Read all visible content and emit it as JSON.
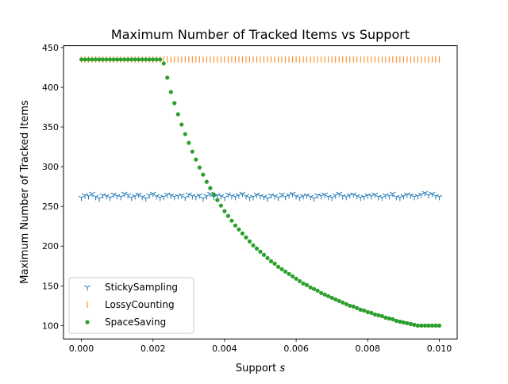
{
  "chart_data": {
    "type": "scatter",
    "title": "Maximum Number of Tracked Items vs Support",
    "xlabel": "Support ",
    "xlabel_var": "s",
    "ylabel": "Maximum Number of Tracked Items",
    "xlim": [
      -0.0005,
      0.0105
    ],
    "ylim": [
      83.2,
      452.3
    ],
    "x_ticks": [
      0.0,
      0.002,
      0.004,
      0.006,
      0.008,
      0.01
    ],
    "x_tick_labels": [
      "0.000",
      "0.002",
      "0.004",
      "0.006",
      "0.008",
      "0.010"
    ],
    "y_ticks": [
      100,
      150,
      200,
      250,
      300,
      350,
      400,
      450
    ],
    "y_tick_labels": [
      "100",
      "150",
      "200",
      "250",
      "300",
      "350",
      "400",
      "450"
    ],
    "grid": false,
    "legend_position": "lower-left",
    "x": [
      0.0,
      0.0001,
      0.0002,
      0.0003,
      0.0004,
      0.0005,
      0.0006,
      0.0007,
      0.0008,
      0.0009,
      0.001,
      0.0011,
      0.0012,
      0.0013,
      0.0014,
      0.0015,
      0.0016,
      0.0017,
      0.0018,
      0.0019,
      0.002,
      0.0021,
      0.0022,
      0.0023,
      0.0024,
      0.0025,
      0.0026,
      0.0027,
      0.0028,
      0.0029,
      0.003,
      0.0031,
      0.0032,
      0.0033,
      0.0034,
      0.0035,
      0.0036,
      0.0037,
      0.0038,
      0.0039,
      0.004,
      0.0041,
      0.0042,
      0.0043,
      0.0044,
      0.0045,
      0.0046,
      0.0047,
      0.0048,
      0.0049,
      0.005,
      0.0051,
      0.0052,
      0.0053,
      0.0054,
      0.0055,
      0.0056,
      0.0057,
      0.0058,
      0.0059,
      0.006,
      0.0061,
      0.0062,
      0.0063,
      0.0064,
      0.0065,
      0.0066,
      0.0067,
      0.0068,
      0.0069,
      0.007,
      0.0071,
      0.0072,
      0.0073,
      0.0074,
      0.0075,
      0.0076,
      0.0077,
      0.0078,
      0.0079,
      0.008,
      0.0081,
      0.0082,
      0.0083,
      0.0084,
      0.0085,
      0.0086,
      0.0087,
      0.0088,
      0.0089,
      0.009,
      0.0091,
      0.0092,
      0.0093,
      0.0094,
      0.0095,
      0.0096,
      0.0097,
      0.0098,
      0.0099,
      0.01
    ],
    "series": [
      {
        "name": "StickySampling",
        "color": "#1f77b4",
        "marker": "tri_down",
        "values": [
          261,
          264,
          263,
          266,
          262,
          260,
          264,
          263,
          261,
          265,
          263,
          262,
          266,
          264,
          261,
          263,
          265,
          262,
          260,
          264,
          266,
          263,
          261,
          262,
          265,
          264,
          262,
          263,
          264,
          261,
          265,
          263,
          262,
          264,
          260,
          263,
          266,
          262,
          264,
          263,
          261,
          265,
          263,
          262,
          264,
          266,
          263,
          261,
          262,
          265,
          263,
          262,
          260,
          264,
          263,
          261,
          265,
          262,
          264,
          266,
          263,
          261,
          263,
          264,
          262,
          260,
          264,
          263,
          265,
          262,
          261,
          264,
          266,
          263,
          262,
          264,
          265,
          263,
          261,
          262,
          264,
          263,
          265,
          262,
          261,
          264,
          263,
          266,
          262,
          261,
          263,
          265,
          264,
          262,
          263,
          265,
          267,
          264,
          266,
          263,
          262
        ]
      },
      {
        "name": "LossyCounting",
        "color": "#ff7f0e",
        "marker": "vline",
        "values": [
          435,
          435,
          435,
          435,
          435,
          435,
          435,
          435,
          435,
          435,
          435,
          435,
          435,
          435,
          435,
          435,
          435,
          435,
          435,
          435,
          435,
          435,
          435,
          435,
          435,
          435,
          435,
          435,
          435,
          435,
          435,
          435,
          435,
          435,
          435,
          435,
          435,
          435,
          435,
          435,
          435,
          435,
          435,
          435,
          435,
          435,
          435,
          435,
          435,
          435,
          435,
          435,
          435,
          435,
          435,
          435,
          435,
          435,
          435,
          435,
          435,
          435,
          435,
          435,
          435,
          435,
          435,
          435,
          435,
          435,
          435,
          435,
          435,
          435,
          435,
          435,
          435,
          435,
          435,
          435,
          435,
          435,
          435,
          435,
          435,
          435,
          435,
          435,
          435,
          435,
          435,
          435,
          435,
          435,
          435,
          435,
          435,
          435,
          435,
          435,
          435
        ]
      },
      {
        "name": "SpaceSaving",
        "color": "#2ca02c",
        "marker": "dot",
        "values": [
          435,
          435,
          435,
          435,
          435,
          435,
          435,
          435,
          435,
          435,
          435,
          435,
          435,
          435,
          435,
          435,
          435,
          435,
          435,
          435,
          435,
          435,
          435,
          430,
          412,
          394,
          380,
          366,
          353,
          341,
          330,
          319,
          309,
          299,
          290,
          281,
          273,
          265,
          258,
          251,
          244,
          238,
          232,
          226,
          221,
          216,
          211,
          206,
          201,
          197,
          193,
          189,
          185,
          181,
          178,
          174,
          171,
          168,
          165,
          162,
          159,
          156,
          153,
          151,
          148,
          146,
          144,
          141,
          139,
          137,
          135,
          133,
          131,
          129,
          127,
          125,
          124,
          122,
          120,
          119,
          117,
          116,
          114,
          113,
          112,
          110,
          109,
          108,
          106,
          105,
          104,
          103,
          102,
          101,
          100,
          100,
          100,
          100,
          100,
          100,
          100
        ]
      }
    ]
  }
}
